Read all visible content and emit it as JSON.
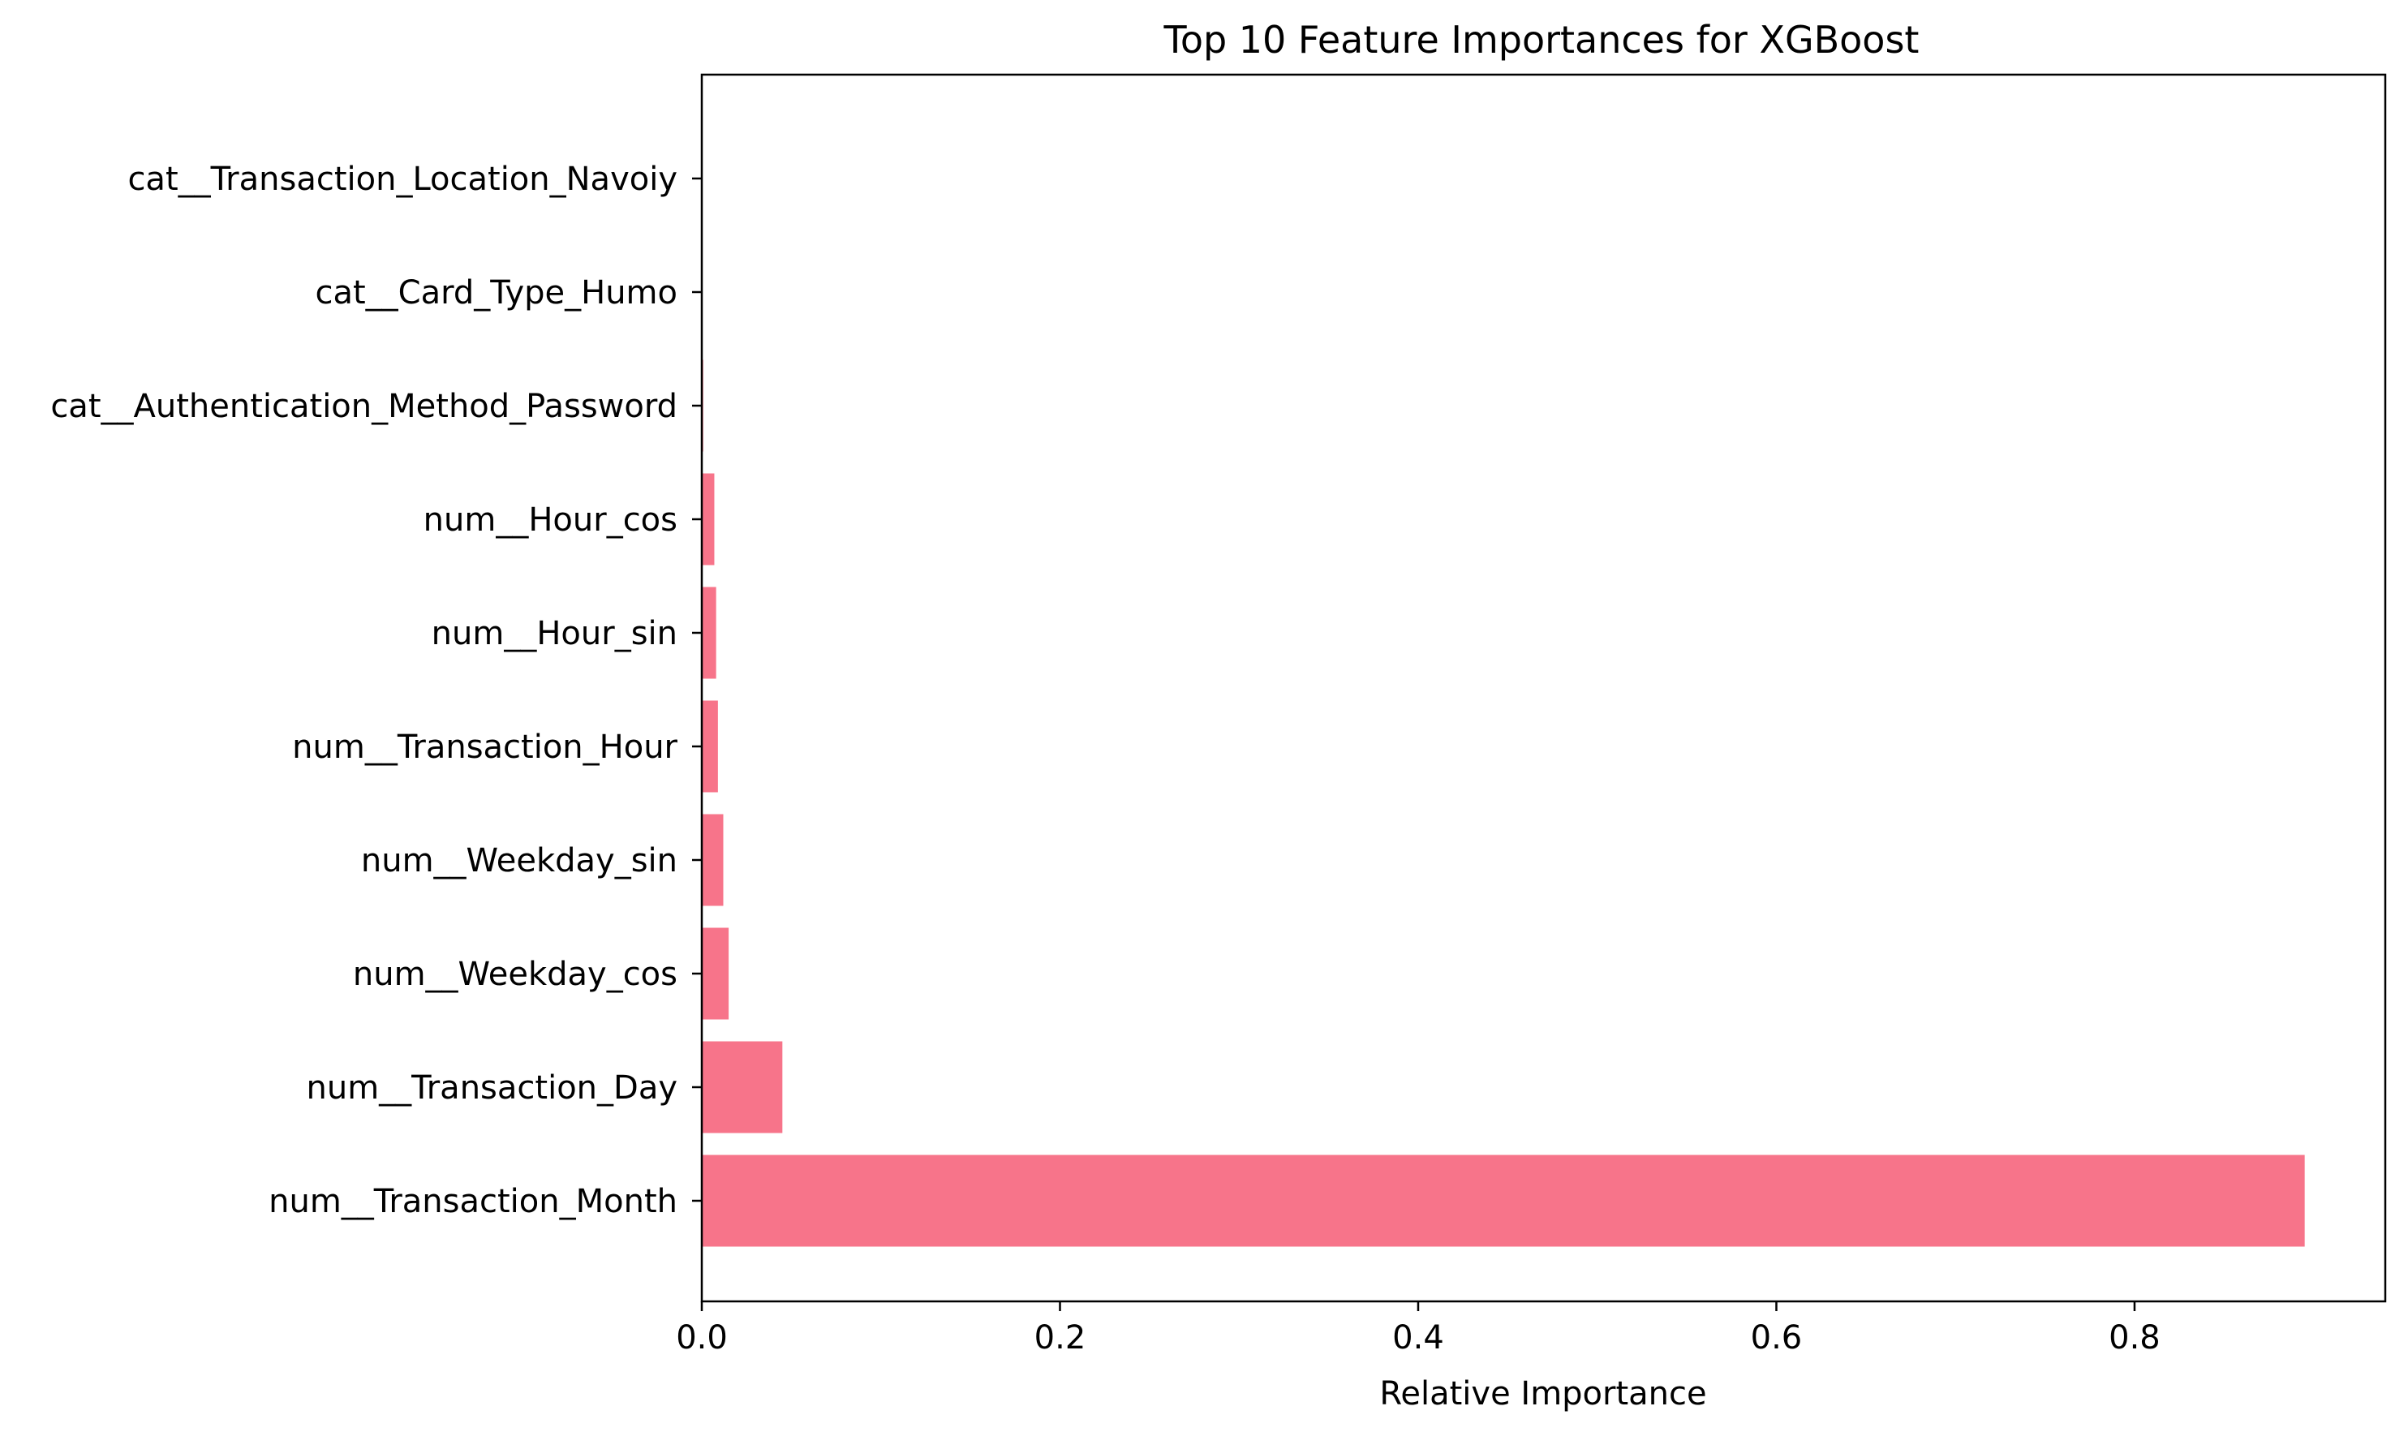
{
  "chart_data": {
    "type": "bar",
    "orientation": "horizontal",
    "title": "Top 10 Feature Importances for XGBoost",
    "xlabel": "Relative Importance",
    "ylabel": "",
    "xlim": [
      0,
      0.94
    ],
    "xticks": [
      0.0,
      0.2,
      0.4,
      0.6,
      0.8
    ],
    "xtick_labels": [
      "0.0",
      "0.2",
      "0.4",
      "0.6",
      "0.8"
    ],
    "bar_color": "#f7748a",
    "grid": false,
    "categories": [
      "num__Transaction_Month",
      "num__Transaction_Day",
      "num__Weekday_cos",
      "num__Weekday_sin",
      "num__Transaction_Hour",
      "num__Hour_sin",
      "num__Hour_cos",
      "cat__Authentication_Method_Password",
      "cat__Card_Type_Humo",
      "cat__Transaction_Location_Navoiy"
    ],
    "values": [
      0.895,
      0.045,
      0.015,
      0.012,
      0.009,
      0.008,
      0.007,
      0.0008,
      0.0002,
      0.0001
    ]
  }
}
